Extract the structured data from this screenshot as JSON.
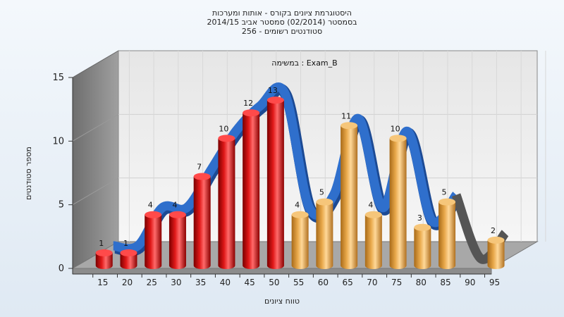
{
  "chart_data": {
    "type": "bar",
    "title_lines": [
      "היסטוגרמת ציונים בקורס - אותות ומערכות",
      "בסמסטר  (02/2014)  סמסטר אביב 2014/15",
      "סטודנטים רשומים - 256"
    ],
    "subtitle": "במשימה : Exam_B",
    "xlabel": "טווח ציונים",
    "ylabel": "מספר סטודנטים",
    "categories": [
      "15",
      "20",
      "25",
      "30",
      "35",
      "40",
      "45",
      "50",
      "55",
      "60",
      "65",
      "70",
      "75",
      "80",
      "85",
      "90",
      "95"
    ],
    "values": [
      1,
      1,
      4,
      4,
      7,
      10,
      12,
      13,
      4,
      5,
      11,
      4,
      10,
      3,
      5,
      0,
      2
    ],
    "ylim": [
      0,
      15
    ],
    "yticks": [
      0,
      5,
      10,
      15
    ],
    "grid": true,
    "colors": {
      "below_55": "#e01818",
      "from_55": "#e8a84a",
      "trend_line": "#2f6fcc",
      "trend_tail": "#555555",
      "back_wall": "#f2f2f2",
      "side_wall": "#8a8a8a"
    }
  }
}
